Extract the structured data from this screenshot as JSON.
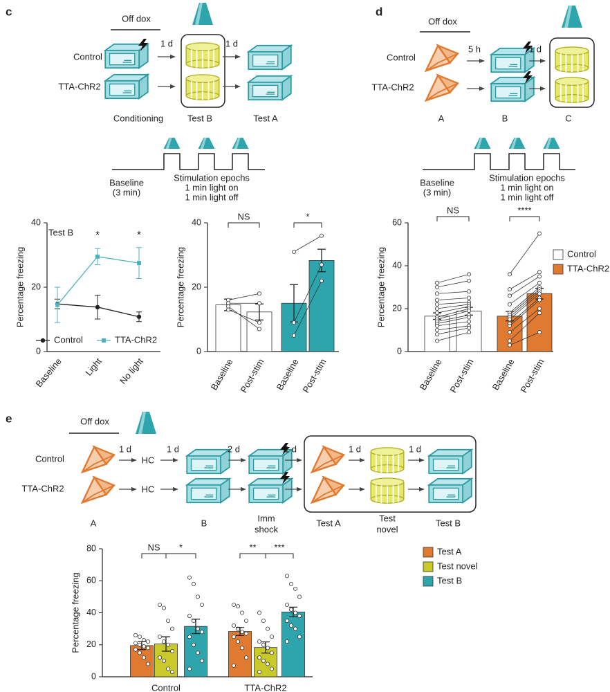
{
  "panels": {
    "c": {
      "label": "c",
      "diagram": {
        "off_dox": "Off dox",
        "rows": [
          "Control",
          "TTA-ChR2"
        ],
        "intervals": [
          "1 d",
          "1 d"
        ],
        "stages": [
          "Conditioning",
          "Test B",
          "Test A"
        ]
      },
      "stim": {
        "baseline": "Baseline",
        "baseline_duration": "(3 min)",
        "epochs": "Stimulation epochs",
        "on": "1 min light on",
        "off": "1 min light off"
      }
    },
    "d": {
      "label": "d",
      "diagram": {
        "off_dox": "Off dox",
        "rows": [
          "Control",
          "TTA-ChR2"
        ],
        "intervals": [
          "5 h",
          "1 d"
        ],
        "stages": [
          "A",
          "B",
          "C"
        ]
      },
      "stim": {
        "baseline": "Baseline",
        "baseline_duration": "(3 min)",
        "epochs": "Stimulation epochs",
        "on": "1 min light on",
        "off": "1 min light off"
      }
    },
    "e": {
      "label": "e",
      "diagram": {
        "off_dox": "Off dox",
        "rows": [
          "Control",
          "TTA-ChR2"
        ],
        "intervals": [
          "1 d",
          "1 d",
          "2 d",
          "1 d",
          "1 d",
          "1 d"
        ],
        "hc": "HC",
        "stages": [
          "A",
          "B",
          [
            "Imm",
            "shock"
          ],
          "Test A",
          [
            "Test",
            "novel"
          ],
          "Test B"
        ]
      }
    }
  },
  "chart_data": [
    {
      "type": "line",
      "categories": [
        "Baseline",
        "Light",
        "No light"
      ],
      "ylabel": "Percentage freezing",
      "ylim": [
        0,
        40
      ],
      "yticks": [
        0,
        20,
        40
      ],
      "annotations": [
        "Test B"
      ],
      "significance": [
        "*",
        "*"
      ],
      "series": [
        {
          "name": "Control",
          "color": "#222222",
          "values": [
            14.8,
            13.8,
            10.8
          ],
          "errors": [
            1.5,
            3.7,
            1.5
          ]
        },
        {
          "name": "TTA-ChR2",
          "color": "#4fb3bd",
          "values": [
            14.5,
            29.5,
            27.5
          ],
          "errors": [
            5.5,
            2.5,
            4.8
          ]
        }
      ]
    },
    {
      "type": "bar",
      "categories": [
        "Baseline",
        "Post-stim"
      ],
      "ylabel": "Percentage freezing",
      "ylim": [
        0,
        40
      ],
      "yticks": [
        0,
        20,
        40
      ],
      "significance": [
        "NS",
        "*"
      ],
      "series": [
        {
          "color": "#ffffff",
          "values": [
            14.5,
            12.3
          ],
          "errors": [
            1.8,
            2.5
          ],
          "points": [
            [
              16,
              15,
              14,
              13
            ],
            [
              18,
              15,
              7,
              9
            ]
          ]
        },
        {
          "color": "#2ea5ad",
          "values": [
            15,
            28.3
          ],
          "errors": [
            5.8,
            3.5
          ],
          "points": [
            [
              31,
              9,
              5
            ],
            [
              36,
              27,
              22
            ]
          ]
        }
      ]
    },
    {
      "type": "bar",
      "categories": [
        "Baseline",
        "Post-stim"
      ],
      "ylabel": "Percentage freezing",
      "ylim": [
        0,
        60
      ],
      "yticks": [
        0,
        20,
        40,
        60
      ],
      "significance": [
        "NS",
        "****"
      ],
      "series": [
        {
          "name": "Control",
          "color": "#ffffff",
          "values": [
            16.5,
            18.8
          ],
          "errors": [
            1.5,
            1.8
          ],
          "points": [
            [
              32,
              30,
              27,
              24,
              22,
              20,
              18,
              16,
              15,
              14,
              13,
              12,
              10,
              8,
              5
            ],
            [
              36,
              33,
              28,
              25,
              23,
              22,
              21,
              20,
              19,
              17,
              16,
              14,
              12,
              11,
              9
            ]
          ]
        },
        {
          "name": "TTA-ChR2",
          "color": "#e07a30",
          "values": [
            16.5,
            27
          ],
          "errors": [
            2.2,
            2.5
          ],
          "points": [
            [
              36,
              29,
              26,
              22,
              18,
              17,
              16,
              15,
              13,
              12,
              9,
              5,
              3
            ],
            [
              55,
              37,
              35,
              32,
              30,
              29,
              28,
              27,
              25,
              24,
              20,
              18,
              9
            ]
          ]
        }
      ]
    },
    {
      "type": "bar",
      "categories": [
        "Control",
        "TTA-ChR2"
      ],
      "ylabel": "Percentage freezing",
      "ylim": [
        0,
        80
      ],
      "yticks": [
        0,
        20,
        40,
        60,
        80
      ],
      "significance": [
        "NS",
        "*",
        "**",
        "***"
      ],
      "series": [
        {
          "name": "Test A",
          "color": "#e07a30",
          "values": [
            19.5,
            28.3
          ],
          "errors": [
            2.5,
            2.5
          ],
          "points": [
            [
              26,
              25,
              23,
              22,
              21,
              20,
              19,
              18,
              17,
              15,
              12,
              8
            ],
            [
              45,
              44,
              40,
              35,
              32,
              30,
              28,
              27,
              25,
              22,
              18,
              12,
              7
            ]
          ]
        },
        {
          "name": "Test novel",
          "color": "#c9c92a",
          "values": [
            20.5,
            18.3
          ],
          "errors": [
            4.5,
            3.5
          ],
          "points": [
            [
              45,
              43,
              35,
              30,
              25,
              22,
              20,
              16,
              12,
              10,
              5,
              3
            ],
            [
              40,
              35,
              30,
              25,
              22,
              20,
              18,
              15,
              12,
              10,
              8,
              5,
              3
            ]
          ]
        },
        {
          "name": "Test B",
          "color": "#2ea5ad",
          "values": [
            31.5,
            40.5
          ],
          "errors": [
            4.5,
            3
          ],
          "points": [
            [
              62,
              58,
              50,
              45,
              38,
              35,
              30,
              28,
              25,
              20,
              15,
              10,
              5
            ],
            [
              63,
              58,
              55,
              50,
              45,
              42,
              40,
              38,
              35,
              32,
              30,
              25,
              22
            ]
          ]
        }
      ]
    }
  ]
}
